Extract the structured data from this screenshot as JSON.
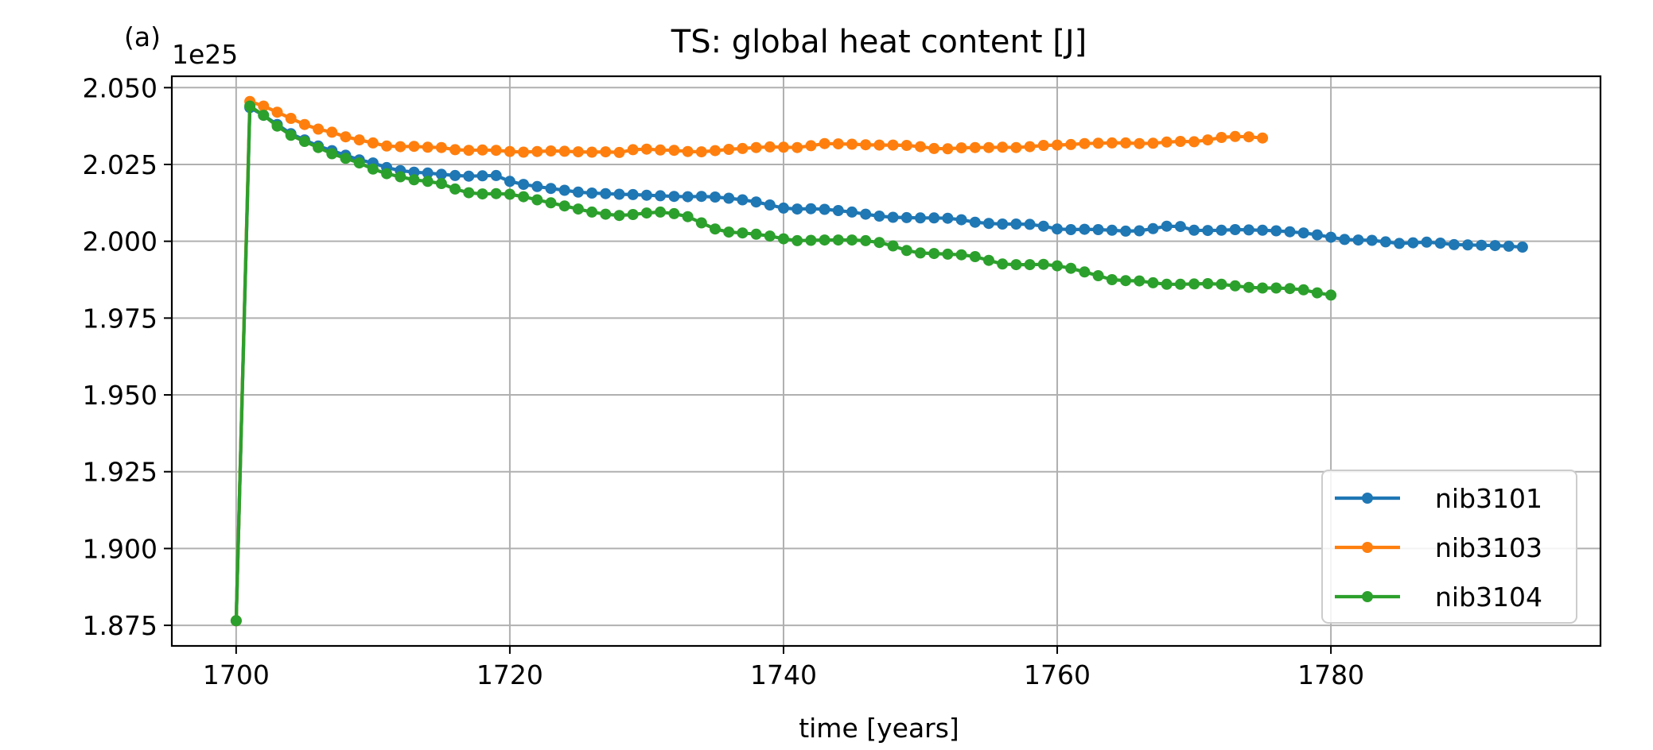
{
  "panel_label": "(a)",
  "chart_data": {
    "type": "line",
    "title": "TS: global heat content [J]",
    "xlabel": "time [years]",
    "ylabel": "",
    "y_offset_label": "1e25",
    "xlim": [
      1695.3,
      1799.7
    ],
    "ylim": [
      1.8683,
      2.0537
    ],
    "x_ticks": [
      1700,
      1720,
      1740,
      1760,
      1780
    ],
    "x_tick_labels": [
      "1700",
      "1720",
      "1740",
      "1760",
      "1780"
    ],
    "y_ticks": [
      1.875,
      1.9,
      1.925,
      1.95,
      1.975,
      2.0,
      2.025,
      2.05
    ],
    "y_tick_labels": [
      "1.875",
      "1.900",
      "1.925",
      "1.950",
      "1.975",
      "2.000",
      "2.025",
      "2.050"
    ],
    "grid": true,
    "legend_position": "lower-right",
    "series": [
      {
        "name": "nib3101",
        "color": "#1f77b4",
        "x_start": 1700,
        "values": [
          1.8765,
          2.0435,
          2.041,
          2.038,
          2.035,
          2.033,
          2.031,
          2.0295,
          2.028,
          2.0265,
          2.0255,
          2.024,
          2.023,
          2.0225,
          2.0222,
          2.0218,
          2.0214,
          2.0212,
          2.0213,
          2.0214,
          2.0195,
          2.0185,
          2.0178,
          2.0172,
          2.0166,
          2.016,
          2.0157,
          2.0155,
          2.0153,
          2.0152,
          2.015,
          2.0148,
          2.0146,
          2.0145,
          2.0146,
          2.0144,
          2.014,
          2.0135,
          2.0128,
          2.0118,
          2.0108,
          2.0105,
          2.0106,
          2.0104,
          2.01,
          2.0095,
          2.0088,
          2.0082,
          2.0078,
          2.0077,
          2.0076,
          2.0076,
          2.0075,
          2.007,
          2.0062,
          2.0058,
          2.0056,
          2.0056,
          2.0055,
          2.0049,
          2.004,
          2.0038,
          2.0039,
          2.0038,
          2.0036,
          2.0033,
          2.0034,
          2.0041,
          2.0049,
          2.0048,
          2.0036,
          2.0035,
          2.0036,
          2.0038,
          2.0037,
          2.0036,
          2.0034,
          2.0031,
          2.0027,
          2.0021,
          2.0013,
          2.0006,
          2.0004,
          2.0003,
          1.9998,
          1.9993,
          1.9995,
          1.9997,
          1.9994,
          1.9989,
          1.9988,
          1.9987,
          1.9986,
          1.9984,
          1.9981
        ]
      },
      {
        "name": "nib3103",
        "color": "#ff7f0e",
        "x_start": 1700,
        "values": [
          1.8765,
          2.0455,
          2.044,
          2.042,
          2.04,
          2.038,
          2.0365,
          2.0355,
          2.034,
          2.033,
          2.032,
          2.031,
          2.0308,
          2.0309,
          2.0306,
          2.0305,
          2.0298,
          2.0296,
          2.0297,
          2.0296,
          2.0292,
          2.029,
          2.0292,
          2.0294,
          2.0293,
          2.0291,
          2.029,
          2.0291,
          2.0289,
          2.0298,
          2.03,
          2.0297,
          2.0296,
          2.0292,
          2.0291,
          2.0295,
          2.0299,
          2.0302,
          2.0305,
          2.0307,
          2.0306,
          2.0305,
          2.0311,
          2.0318,
          2.0317,
          2.0316,
          2.0314,
          2.0313,
          2.0313,
          2.0312,
          2.0308,
          2.0302,
          2.0301,
          2.0304,
          2.0305,
          2.0305,
          2.0306,
          2.0305,
          2.0308,
          2.0312,
          2.0313,
          2.0315,
          2.0318,
          2.0319,
          2.032,
          2.032,
          2.0318,
          2.0319,
          2.0323,
          2.0325,
          2.0324,
          2.033,
          2.0338,
          2.0341,
          2.034,
          2.0336
        ]
      },
      {
        "name": "nib3104",
        "color": "#2ca02c",
        "x_start": 1700,
        "values": [
          1.8765,
          2.044,
          2.041,
          2.0375,
          2.0345,
          2.0325,
          2.0305,
          2.0285,
          2.027,
          2.0255,
          2.0235,
          2.022,
          2.021,
          2.02,
          2.0195,
          2.0188,
          2.017,
          2.0158,
          2.0154,
          2.0155,
          2.0153,
          2.0145,
          2.0135,
          2.0125,
          2.0115,
          2.0105,
          2.0095,
          2.0088,
          2.0084,
          2.0087,
          2.0092,
          2.0095,
          2.009,
          2.008,
          2.006,
          2.004,
          2.003,
          2.0027,
          2.0023,
          2.0017,
          2.0008,
          2.0002,
          2.0003,
          2.0004,
          2.0004,
          2.0004,
          2.0002,
          1.9996,
          1.9985,
          1.997,
          1.9962,
          1.996,
          1.9958,
          1.9956,
          1.995,
          1.9938,
          1.9926,
          1.9924,
          1.9924,
          1.9925,
          1.992,
          1.9912,
          1.99,
          1.9888,
          1.9875,
          1.9872,
          1.9871,
          1.9865,
          1.986,
          1.986,
          1.9861,
          1.9862,
          1.986,
          1.9855,
          1.985,
          1.9848,
          1.9848,
          1.9846,
          1.9842,
          1.9832,
          1.9825
        ]
      }
    ]
  }
}
